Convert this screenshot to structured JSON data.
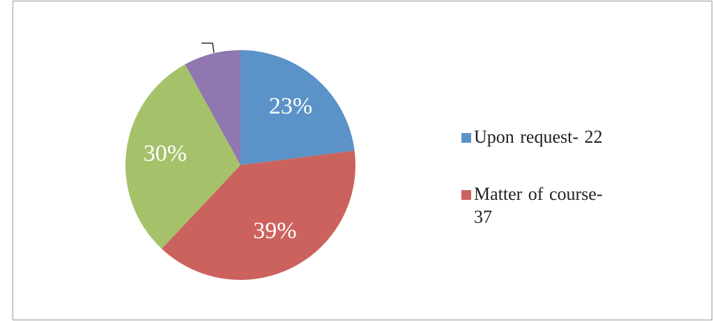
{
  "chart_data": {
    "type": "pie",
    "categories": [
      "Upon request- 22",
      "Matter of course- 37",
      null,
      null
    ],
    "values": [
      23,
      39,
      30,
      8
    ],
    "value_labels": [
      "23%",
      "39%",
      "30%",
      null
    ],
    "colors": [
      "#5b93c9",
      "#cc625e",
      "#a5c26a",
      "#9077b0"
    ]
  }
}
